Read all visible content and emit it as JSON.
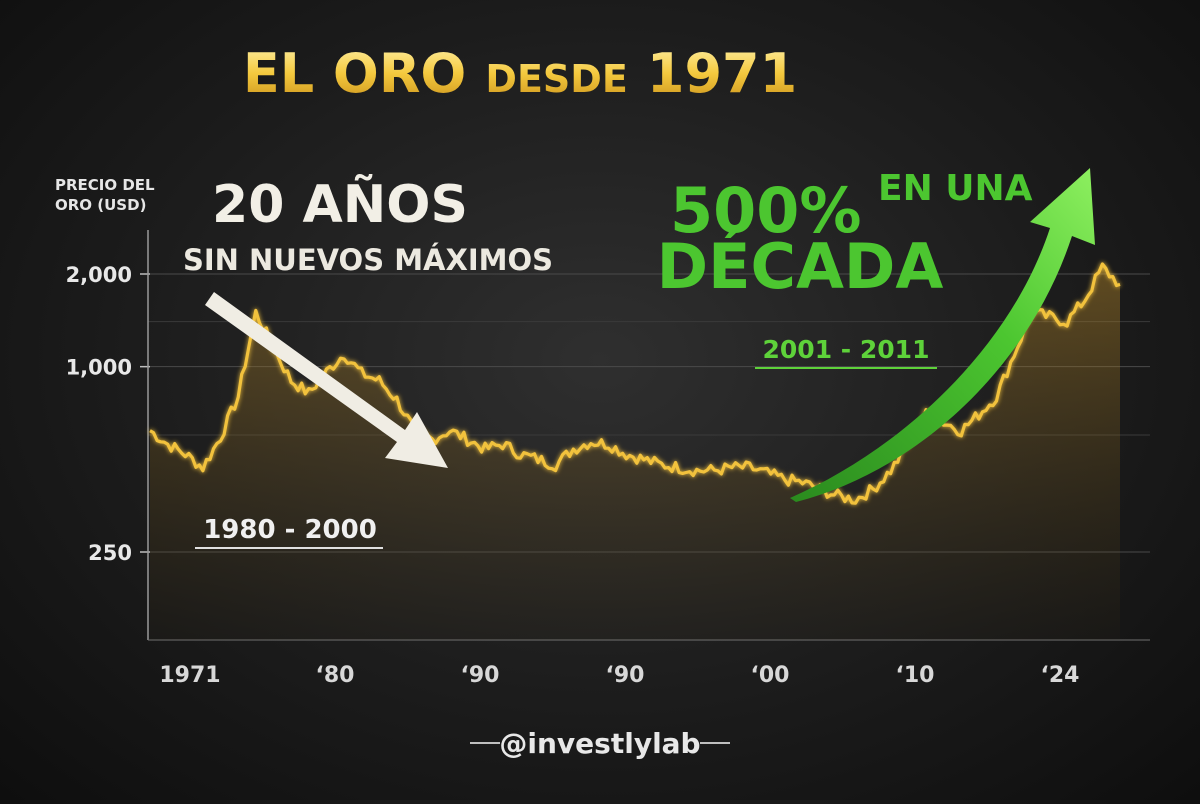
{
  "title": {
    "part1": "EL ORO",
    "part2": "DESDE",
    "part3": "1971"
  },
  "handle": "@investlylab",
  "annotations": {
    "left_big": "20 AÑOS",
    "left_sub": "SIN NUEVOS MÁXIMOS",
    "left_range": "1980 - 2000",
    "right_big": "500%",
    "right_med1": "EN UNA",
    "right_med2": "DÉCADA",
    "right_range": "2001 - 2011"
  },
  "colors": {
    "gold": "#f2c23c",
    "green": "#4cc630",
    "arrow_white": "#f0ede4",
    "title_gold": "#f0c440"
  },
  "chart_data": {
    "type": "line",
    "ylabel_line1": "PRECIO DEL",
    "ylabel_line2": "ORO (USD)",
    "y_scale": "log",
    "y_ticks": [
      250,
      1000,
      2000
    ],
    "y_tick_labels": [
      "250",
      "1,000",
      "2,000"
    ],
    "x_tick_labels": [
      "1971",
      "‘80",
      "‘90",
      "‘90",
      "‘00",
      "‘10",
      "‘24"
    ],
    "grid": true,
    "series": [
      {
        "values": [
          620,
          560,
          520,
          470,
          590,
          800,
          1500,
          1150,
          900,
          820,
          960,
          1100,
          950,
          900,
          780,
          620,
          580,
          620,
          580,
          540,
          560,
          520,
          500,
          480,
          540,
          570,
          560,
          520,
          500,
          480,
          470,
          460,
          460,
          470,
          470,
          450,
          430,
          420,
          400,
          380,
          370,
          400,
          460,
          560,
          700,
          660,
          620,
          700,
          800,
          1100,
          1500,
          1450,
          1400,
          1650,
          2100,
          1850
        ]
      }
    ]
  }
}
